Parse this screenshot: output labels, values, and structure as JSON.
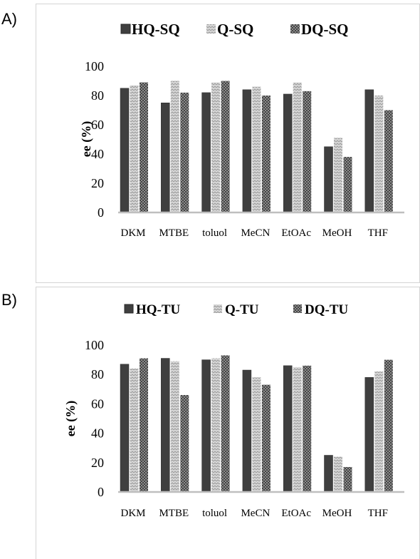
{
  "chart_data": [
    {
      "panel_label": "A)",
      "type": "bar",
      "title": "",
      "xlabel": "",
      "ylabel": "ee (%)",
      "ylim": [
        0,
        100
      ],
      "yticks": [
        "0",
        "20",
        "40",
        "60",
        "80",
        "100"
      ],
      "grid": false,
      "legend_position": "top",
      "categories": [
        "DKM",
        "MTBE",
        "toluol",
        "MeCN",
        "EtOAc",
        "MeOH",
        "THF"
      ],
      "series": [
        {
          "name": "HQ-SQ",
          "values": [
            85,
            75,
            82,
            84,
            81,
            45,
            84
          ],
          "color": "#3f3f3f",
          "pattern": "solid"
        },
        {
          "name": "Q-SQ",
          "values": [
            87,
            90,
            89,
            86,
            89,
            51,
            80
          ],
          "color": "#b8b8b8",
          "pattern": "zigzag"
        },
        {
          "name": "DQ-SQ",
          "values": [
            89,
            82,
            90,
            80,
            83,
            38,
            70
          ],
          "color": "#666666",
          "pattern": "checker"
        }
      ]
    },
    {
      "panel_label": "B)",
      "type": "bar",
      "title": "",
      "xlabel": "",
      "ylabel": "ee (%)",
      "ylim": [
        0,
        100
      ],
      "yticks": [
        "0",
        "20",
        "40",
        "60",
        "80",
        "100"
      ],
      "grid": false,
      "legend_position": "top",
      "categories": [
        "DKM",
        "MTBE",
        "toluol",
        "MeCN",
        "EtOAc",
        "MeOH",
        "THF"
      ],
      "series": [
        {
          "name": "HQ-TU",
          "values": [
            87,
            91,
            90,
            83,
            86,
            25,
            78
          ],
          "color": "#3f3f3f",
          "pattern": "solid"
        },
        {
          "name": "Q-TU",
          "values": [
            84,
            89,
            91,
            78,
            85,
            24,
            82
          ],
          "color": "#b8b8b8",
          "pattern": "zigzag"
        },
        {
          "name": "DQ-TU",
          "values": [
            91,
            66,
            93,
            73,
            86,
            17,
            90
          ],
          "color": "#666666",
          "pattern": "checker"
        }
      ]
    }
  ]
}
